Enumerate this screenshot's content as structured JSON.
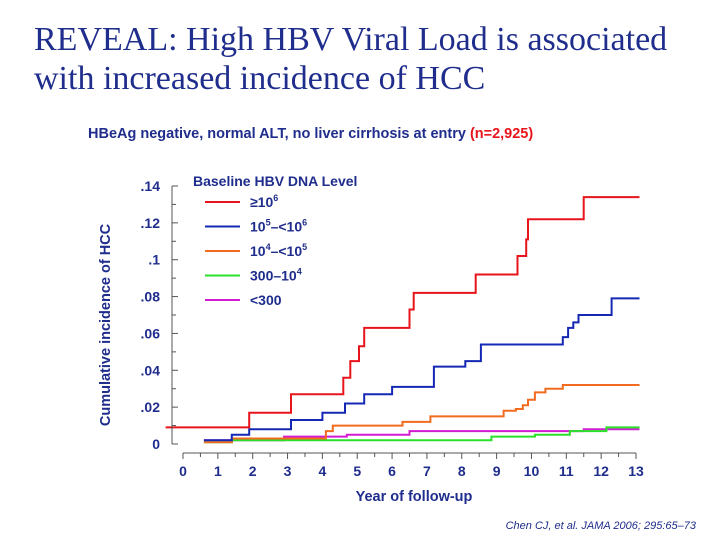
{
  "slide": {
    "title": "REVEAL: High HBV Viral Load is associated with increased incidence of HCC",
    "subtitle_text": "HBeAg negative, normal ALT, no liver cirrhosis at entry",
    "subtitle_n": "(n=2,925)",
    "citation": "Chen CJ, et al. JAMA 2006; 295:65–73"
  },
  "chart_data": {
    "type": "line",
    "step": true,
    "title": "HBeAg negative, normal ALT, no liver cirrhosis at entry (n=2,925)",
    "xlabel": "Year of follow-up",
    "ylabel": "Cumulative incidence of HCC",
    "xlim": [
      0,
      13
    ],
    "ylim": [
      0,
      0.14
    ],
    "x_ticks": [
      0,
      1,
      2,
      3,
      4,
      5,
      6,
      7,
      8,
      9,
      10,
      11,
      12,
      13
    ],
    "x_tick_labels": [
      "0",
      "1",
      "2",
      "3",
      "4",
      "5",
      "6",
      "7",
      "8",
      "9",
      "10",
      "11",
      "12",
      "13"
    ],
    "y_ticks": [
      0,
      0.02,
      0.04,
      0.06,
      0.08,
      0.1,
      0.12,
      0.14
    ],
    "y_tick_labels": [
      "0",
      ".02",
      ".04",
      ".06",
      ".08",
      ".1",
      ".12",
      ".14"
    ],
    "legend_title": "Baseline HBV DNA Level",
    "legend_position": "top-left",
    "series": [
      {
        "name": "≥10⁶",
        "base": "≥10",
        "exp": "6",
        "exp2": "",
        "base2": "",
        "color": "#e8141b",
        "points": [
          [
            -0.5,
            0.009
          ],
          [
            1.9,
            0.009
          ],
          [
            1.9,
            0.017
          ],
          [
            3.1,
            0.017
          ],
          [
            3.1,
            0.027
          ],
          [
            4.6,
            0.027
          ],
          [
            4.6,
            0.036
          ],
          [
            4.8,
            0.036
          ],
          [
            4.8,
            0.045
          ],
          [
            5.05,
            0.045
          ],
          [
            5.05,
            0.053
          ],
          [
            5.2,
            0.053
          ],
          [
            5.2,
            0.063
          ],
          [
            6.5,
            0.063
          ],
          [
            6.5,
            0.073
          ],
          [
            6.62,
            0.073
          ],
          [
            6.62,
            0.082
          ],
          [
            8.4,
            0.082
          ],
          [
            8.4,
            0.092
          ],
          [
            9.6,
            0.092
          ],
          [
            9.6,
            0.102
          ],
          [
            9.85,
            0.102
          ],
          [
            9.85,
            0.111
          ],
          [
            9.9,
            0.111
          ],
          [
            9.9,
            0.122
          ],
          [
            11.5,
            0.122
          ],
          [
            11.5,
            0.134
          ],
          [
            13.1,
            0.134
          ]
        ]
      },
      {
        "name": "10⁵–<10⁶",
        "base": "10",
        "exp": "5",
        "mid": "–<10",
        "exp2": "6",
        "color": "#1428b4",
        "points": [
          [
            0.6,
            0.002
          ],
          [
            1.4,
            0.002
          ],
          [
            1.4,
            0.005
          ],
          [
            1.9,
            0.005
          ],
          [
            1.9,
            0.008
          ],
          [
            3.1,
            0.008
          ],
          [
            3.1,
            0.013
          ],
          [
            4.0,
            0.013
          ],
          [
            4.0,
            0.017
          ],
          [
            4.65,
            0.017
          ],
          [
            4.65,
            0.022
          ],
          [
            5.2,
            0.022
          ],
          [
            5.2,
            0.027
          ],
          [
            6.0,
            0.027
          ],
          [
            6.0,
            0.031
          ],
          [
            7.2,
            0.031
          ],
          [
            7.2,
            0.042
          ],
          [
            8.1,
            0.042
          ],
          [
            8.1,
            0.045
          ],
          [
            8.55,
            0.045
          ],
          [
            8.55,
            0.054
          ],
          [
            10.9,
            0.054
          ],
          [
            10.9,
            0.058
          ],
          [
            11.05,
            0.058
          ],
          [
            11.05,
            0.063
          ],
          [
            11.2,
            0.063
          ],
          [
            11.2,
            0.066
          ],
          [
            11.35,
            0.066
          ],
          [
            11.35,
            0.07
          ],
          [
            12.3,
            0.07
          ],
          [
            12.3,
            0.079
          ],
          [
            13.1,
            0.079
          ]
        ]
      },
      {
        "name": "10⁴–<10⁵",
        "base": "10",
        "exp": "4",
        "mid": "–<10",
        "exp2": "5",
        "color": "#f26b1f",
        "points": [
          [
            0.6,
            0.001
          ],
          [
            1.4,
            0.001
          ],
          [
            1.4,
            0.003
          ],
          [
            4.1,
            0.003
          ],
          [
            4.1,
            0.007
          ],
          [
            4.3,
            0.007
          ],
          [
            4.3,
            0.01
          ],
          [
            6.3,
            0.01
          ],
          [
            6.3,
            0.012
          ],
          [
            7.1,
            0.012
          ],
          [
            7.1,
            0.015
          ],
          [
            9.2,
            0.015
          ],
          [
            9.2,
            0.018
          ],
          [
            9.55,
            0.018
          ],
          [
            9.55,
            0.019
          ],
          [
            9.75,
            0.019
          ],
          [
            9.75,
            0.021
          ],
          [
            9.9,
            0.021
          ],
          [
            9.9,
            0.024
          ],
          [
            10.1,
            0.024
          ],
          [
            10.1,
            0.028
          ],
          [
            10.4,
            0.028
          ],
          [
            10.4,
            0.03
          ],
          [
            10.9,
            0.03
          ],
          [
            10.9,
            0.032
          ],
          [
            13.1,
            0.032
          ]
        ]
      },
      {
        "name": "300–10⁴",
        "base": "300–10",
        "exp": "4",
        "mid": "",
        "exp2": "",
        "color": "#2ae02a",
        "points": [
          [
            0.6,
            0.001
          ],
          [
            1.4,
            0.001
          ],
          [
            1.4,
            0.002
          ],
          [
            8.85,
            0.002
          ],
          [
            8.85,
            0.004
          ],
          [
            10.1,
            0.004
          ],
          [
            10.1,
            0.005
          ],
          [
            11.1,
            0.005
          ],
          [
            11.1,
            0.007
          ],
          [
            12.15,
            0.007
          ],
          [
            12.15,
            0.009
          ],
          [
            13.1,
            0.009
          ]
        ]
      },
      {
        "name": "<300",
        "base": "<300",
        "exp": "",
        "mid": "",
        "exp2": "",
        "color": "#d21bd2",
        "points": [
          [
            0.6,
            0.002
          ],
          [
            2.9,
            0.002
          ],
          [
            2.9,
            0.004
          ],
          [
            4.7,
            0.004
          ],
          [
            4.7,
            0.005
          ],
          [
            6.5,
            0.005
          ],
          [
            6.5,
            0.007
          ],
          [
            11.5,
            0.007
          ],
          [
            11.5,
            0.008
          ],
          [
            13.1,
            0.008
          ]
        ]
      }
    ]
  }
}
